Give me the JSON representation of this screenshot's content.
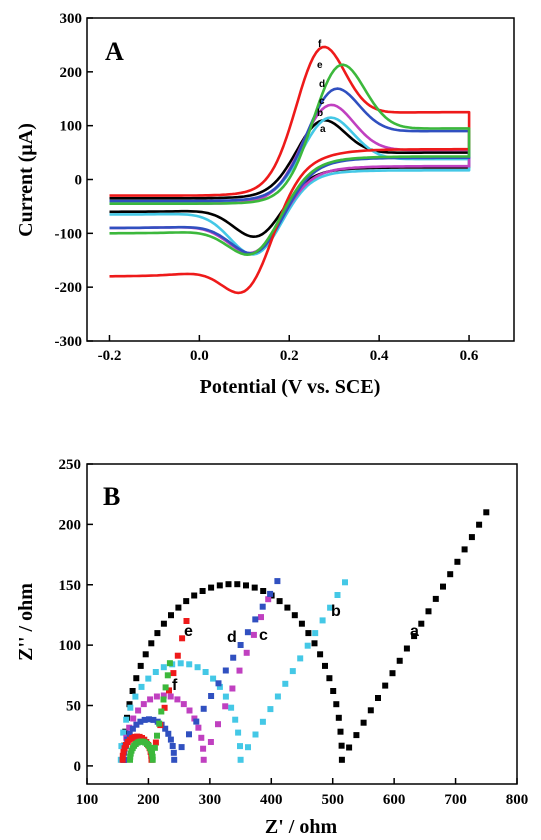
{
  "colors": {
    "a": "#000000",
    "b": "#44c8e6",
    "c": "#c040c0",
    "d": "#3050c0",
    "e": "#ee1a1a",
    "f": "#3cb83c"
  },
  "chart_data": [
    {
      "type": "line",
      "panel_label": "A",
      "xlabel": "Potential (V vs. SCE)",
      "ylabel": "Current (μA)",
      "xlim": [
        -0.25,
        0.7
      ],
      "ylim": [
        -300,
        300
      ],
      "xticks": [
        "-0.2",
        "0.0",
        "0.2",
        "0.4",
        "0.6"
      ],
      "yticks": [
        "-300",
        "-200",
        "-100",
        "0",
        "100",
        "200",
        "300"
      ],
      "series": [
        {
          "name": "a",
          "color": "#000000",
          "ipa": 113,
          "ipc": -118,
          "epa": 0.265,
          "epc": 0.135,
          "i_start": -35,
          "i_end": 50,
          "i_base_low": -60,
          "peak_width": 0.075
        },
        {
          "name": "b",
          "color": "#44c8e6",
          "ipa": 118,
          "ipc": -150,
          "epa": 0.28,
          "epc": 0.13,
          "i_start": -42,
          "i_end": 38,
          "i_base_low": -65,
          "peak_width": 0.08
        },
        {
          "name": "c",
          "color": "#c040c0",
          "ipa": 142,
          "ipc": -150,
          "epa": 0.28,
          "epc": 0.13,
          "i_start": -45,
          "i_end": 55,
          "i_base_low": -90,
          "peak_width": 0.08
        },
        {
          "name": "d",
          "color": "#3050c0",
          "ipa": 172,
          "ipc": -155,
          "epa": 0.29,
          "epc": 0.135,
          "i_start": -40,
          "i_end": 90,
          "i_base_low": -90,
          "peak_width": 0.08
        },
        {
          "name": "e",
          "color": "#ee1a1a",
          "ipa": 252,
          "ipc": -235,
          "epa": 0.265,
          "epc": 0.115,
          "i_start": -30,
          "i_end": 125,
          "i_base_low": -180,
          "peak_width": 0.075
        },
        {
          "name": "f",
          "color": "#3cb83c",
          "ipa": 218,
          "ipc": -158,
          "epa": 0.305,
          "epc": 0.13,
          "i_start": -45,
          "i_end": 95,
          "i_base_low": -100,
          "peak_width": 0.08
        }
      ],
      "curve_labels": [
        "f",
        "e",
        "d",
        "c",
        "b",
        "a"
      ]
    },
    {
      "type": "scatter",
      "panel_label": "B",
      "xlabel": "Z' / ohm",
      "ylabel": "Z'' / ohm",
      "xlim": [
        100,
        800
      ],
      "ylim": [
        -15,
        250
      ],
      "xticks": [
        "100",
        "200",
        "300",
        "400",
        "500",
        "600",
        "700",
        "800"
      ],
      "yticks": [
        "0",
        "50",
        "100",
        "150",
        "200",
        "250"
      ],
      "series": [
        {
          "name": "a",
          "color": "#000000",
          "x0": 160,
          "d": 355,
          "end": [
            750,
            210
          ]
        },
        {
          "name": "b",
          "color": "#44c8e6",
          "x0": 155,
          "d": 195,
          "end": [
            520,
            152
          ]
        },
        {
          "name": "c",
          "color": "#c040c0",
          "x0": 160,
          "d": 130,
          "end": [
            395,
            138
          ]
        },
        {
          "name": "d",
          "color": "#3050c0",
          "x0": 160,
          "d": 82,
          "end": [
            410,
            153
          ]
        },
        {
          "name": "e",
          "color": "#ee1a1a",
          "x0": 158,
          "d": 47,
          "end": [
            262,
            120
          ]
        },
        {
          "name": "f",
          "color": "#3cb83c",
          "x0": 170,
          "d": 37,
          "end": [
            235,
            85
          ]
        }
      ],
      "curve_labels": [
        "a",
        "b",
        "c",
        "d",
        "e",
        "f"
      ]
    }
  ]
}
